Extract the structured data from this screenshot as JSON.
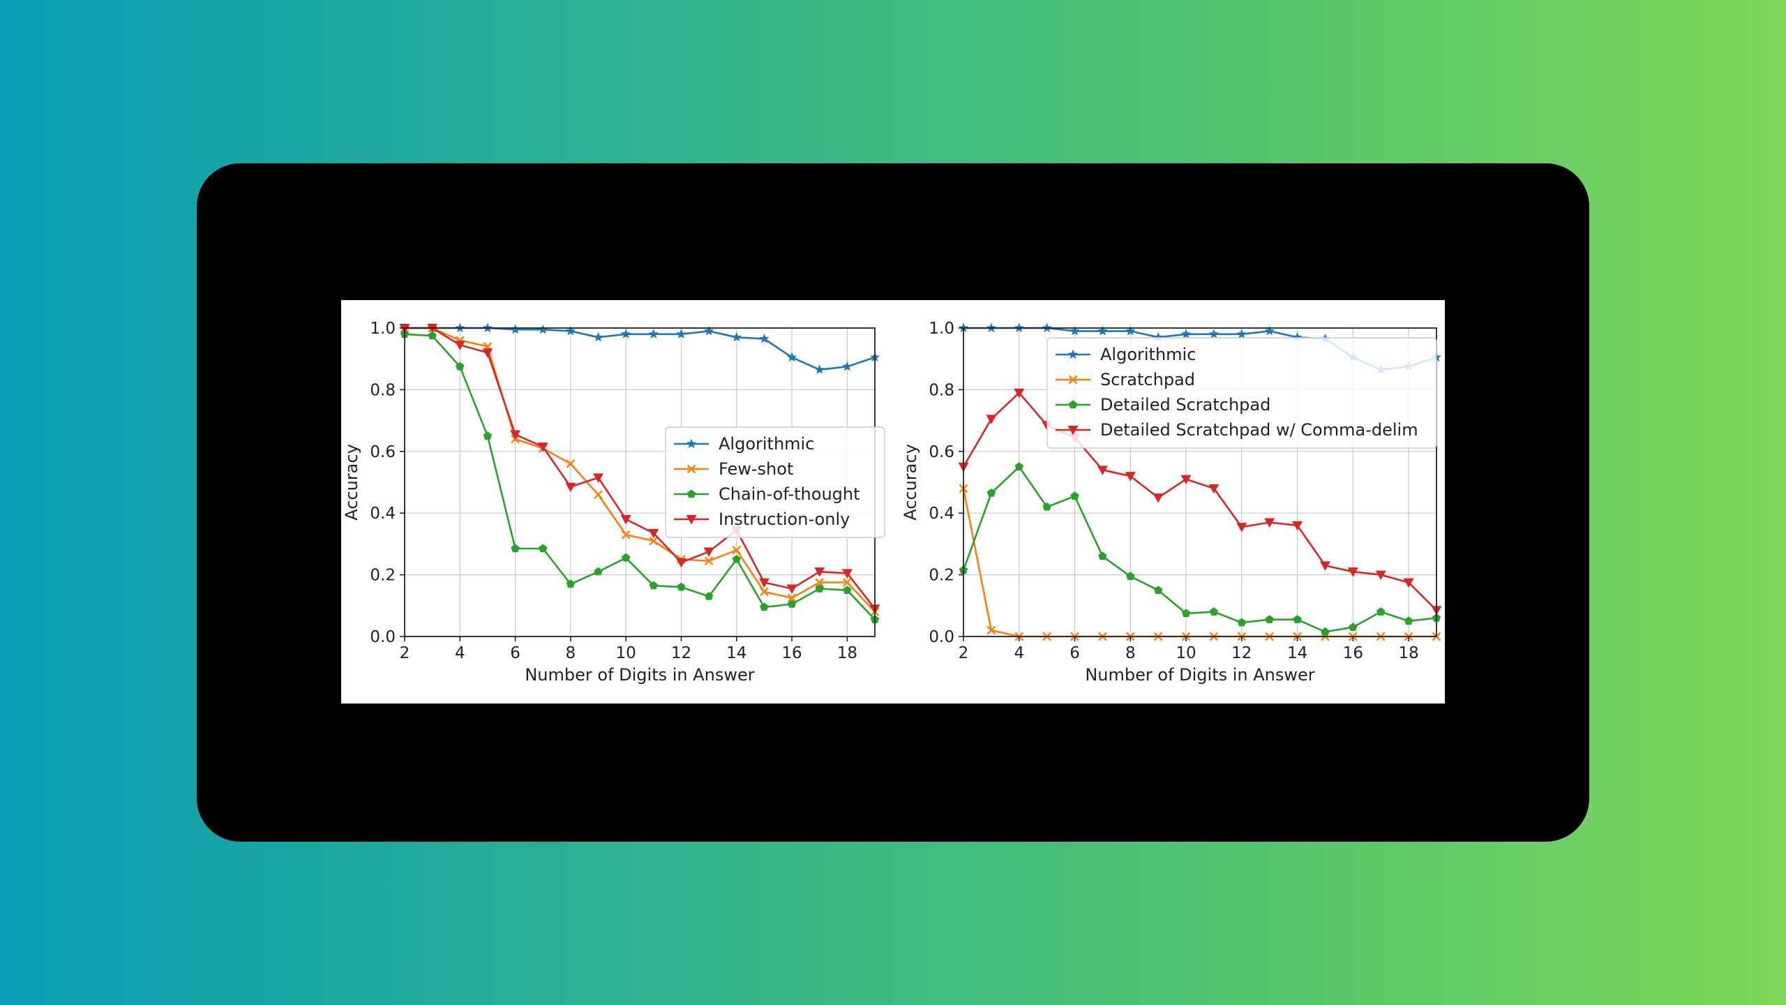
{
  "chart_data": [
    {
      "type": "line",
      "xlabel": "Number of Digits in Answer",
      "ylabel": "Accuracy",
      "xlim": [
        2,
        19
      ],
      "ylim": [
        0,
        1
      ],
      "xticks": [
        2,
        4,
        6,
        8,
        10,
        12,
        14,
        16,
        18
      ],
      "yticks": [
        "0.0",
        "0.2",
        "0.4",
        "0.6",
        "0.8",
        "1.0"
      ],
      "grid": true,
      "legend_position": "center-right",
      "series": [
        {
          "name": "Algorithmic",
          "color": "#1f77b4",
          "marker": "star",
          "x": [
            2,
            3,
            4,
            5,
            6,
            7,
            8,
            9,
            10,
            11,
            12,
            13,
            14,
            15,
            16,
            17,
            18,
            19
          ],
          "y": [
            1.0,
            1.0,
            1.0,
            1.0,
            0.995,
            0.995,
            0.99,
            0.97,
            0.98,
            0.98,
            0.98,
            0.99,
            0.97,
            0.965,
            0.905,
            0.865,
            0.875,
            0.905
          ]
        },
        {
          "name": "Few-shot",
          "color": "#ff7f0e",
          "marker": "x",
          "x": [
            2,
            3,
            4,
            5,
            6,
            7,
            8,
            9,
            10,
            11,
            12,
            13,
            14,
            15,
            16,
            17,
            18,
            19
          ],
          "y": [
            1.0,
            1.0,
            0.96,
            0.94,
            0.64,
            0.61,
            0.56,
            0.46,
            0.33,
            0.31,
            0.25,
            0.245,
            0.28,
            0.145,
            0.125,
            0.175,
            0.175,
            0.08
          ]
        },
        {
          "name": "Chain-of-thought",
          "color": "#2ca02c",
          "marker": "circle",
          "x": [
            2,
            3,
            4,
            5,
            6,
            7,
            8,
            9,
            10,
            11,
            12,
            13,
            14,
            15,
            16,
            17,
            18,
            19
          ],
          "y": [
            0.98,
            0.975,
            0.875,
            0.65,
            0.285,
            0.285,
            0.17,
            0.21,
            0.255,
            0.165,
            0.16,
            0.13,
            0.25,
            0.095,
            0.105,
            0.155,
            0.15,
            0.055
          ]
        },
        {
          "name": "Instruction-only",
          "color": "#d62728",
          "marker": "triangle-down",
          "x": [
            2,
            3,
            4,
            5,
            6,
            7,
            8,
            9,
            10,
            11,
            12,
            13,
            14,
            15,
            16,
            17,
            18,
            19
          ],
          "y": [
            1.0,
            1.0,
            0.945,
            0.92,
            0.655,
            0.615,
            0.485,
            0.515,
            0.38,
            0.335,
            0.24,
            0.275,
            0.345,
            0.175,
            0.155,
            0.21,
            0.205,
            0.09
          ]
        }
      ]
    },
    {
      "type": "line",
      "xlabel": "Number of Digits in Answer",
      "ylabel": "Accuracy",
      "xlim": [
        2,
        19
      ],
      "ylim": [
        0,
        1
      ],
      "xticks": [
        2,
        4,
        6,
        8,
        10,
        12,
        14,
        16,
        18
      ],
      "yticks": [
        "0.0",
        "0.2",
        "0.4",
        "0.6",
        "0.8",
        "1.0"
      ],
      "grid": true,
      "legend_position": "top-right",
      "series": [
        {
          "name": "Algorithmic",
          "color": "#1f77b4",
          "marker": "star",
          "x": [
            2,
            3,
            4,
            5,
            6,
            7,
            8,
            9,
            10,
            11,
            12,
            13,
            14,
            15,
            16,
            17,
            18,
            19
          ],
          "y": [
            1.0,
            1.0,
            1.0,
            1.0,
            0.99,
            0.99,
            0.99,
            0.97,
            0.98,
            0.98,
            0.98,
            0.99,
            0.97,
            0.965,
            0.905,
            0.865,
            0.875,
            0.905
          ]
        },
        {
          "name": "Scratchpad",
          "color": "#ff7f0e",
          "marker": "x",
          "x": [
            2,
            3,
            4,
            5,
            6,
            7,
            8,
            9,
            10,
            11,
            12,
            13,
            14,
            15,
            16,
            17,
            18,
            19
          ],
          "y": [
            0.48,
            0.02,
            0.0,
            0.0,
            0.0,
            0.0,
            0.0,
            0.0,
            0.0,
            0.0,
            0.0,
            0.0,
            0.0,
            0.0,
            0.0,
            0.0,
            0.0,
            0.0
          ]
        },
        {
          "name": "Detailed Scratchpad",
          "color": "#2ca02c",
          "marker": "circle",
          "x": [
            2,
            3,
            4,
            5,
            6,
            7,
            8,
            9,
            10,
            11,
            12,
            13,
            14,
            15,
            16,
            17,
            18,
            19
          ],
          "y": [
            0.215,
            0.465,
            0.55,
            0.42,
            0.455,
            0.26,
            0.195,
            0.15,
            0.075,
            0.08,
            0.045,
            0.055,
            0.055,
            0.015,
            0.03,
            0.08,
            0.05,
            0.06
          ]
        },
        {
          "name": "Detailed Scratchpad w/ Comma-delim",
          "color": "#d62728",
          "marker": "triangle-down",
          "x": [
            2,
            3,
            4,
            5,
            6,
            7,
            8,
            9,
            10,
            11,
            12,
            13,
            14,
            15,
            16,
            17,
            18,
            19
          ],
          "y": [
            0.55,
            0.705,
            0.79,
            0.685,
            0.645,
            0.54,
            0.52,
            0.45,
            0.51,
            0.48,
            0.355,
            0.37,
            0.36,
            0.23,
            0.21,
            0.2,
            0.175,
            0.085
          ]
        }
      ]
    }
  ]
}
